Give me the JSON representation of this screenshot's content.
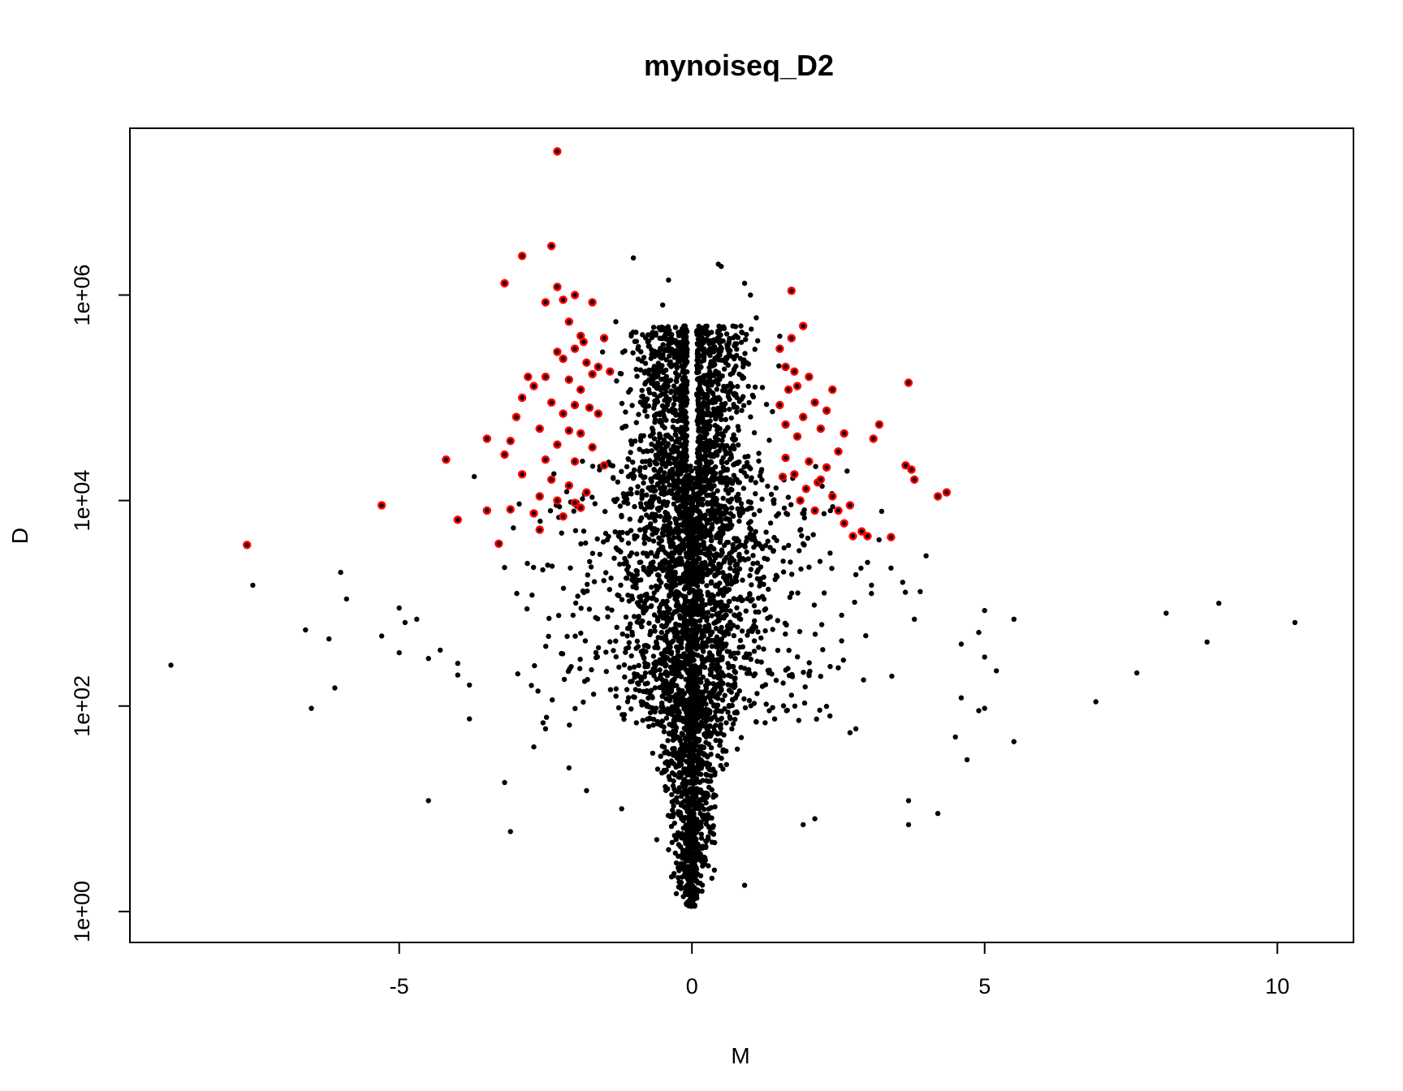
{
  "chart_data": {
    "type": "scatter",
    "title": "mynoiseq_D2",
    "xlabel": "M",
    "ylabel": "D",
    "y_scale": "log",
    "xlim": [
      -9.6,
      11.3
    ],
    "ylim": [
      0.5,
      42000000
    ],
    "x_ticks": [
      {
        "value": -5,
        "label": "-5"
      },
      {
        "value": 0,
        "label": "0"
      },
      {
        "value": 5,
        "label": "5"
      },
      {
        "value": 10,
        "label": "10"
      }
    ],
    "y_ticks": [
      {
        "value": 1,
        "label": "1e+00"
      },
      {
        "value": 100,
        "label": "1e+02"
      },
      {
        "value": 10000,
        "label": "1e+04"
      },
      {
        "value": 1000000,
        "label": "1e+06"
      }
    ],
    "grid": false,
    "colors": {
      "base": "#000000",
      "highlight": "#ff0000"
    },
    "series": [
      {
        "color": "#000000",
        "points": [
          [
            -8.9,
            250
          ],
          [
            -7.5,
            1500
          ],
          [
            -6.0,
            2000
          ],
          [
            -5.9,
            1100
          ],
          [
            -6.6,
            550
          ],
          [
            -6.2,
            450
          ],
          [
            -6.1,
            150
          ],
          [
            -6.5,
            95
          ],
          [
            -5.0,
            900
          ],
          [
            -4.9,
            650
          ],
          [
            -4.7,
            700
          ],
          [
            -5.3,
            480
          ],
          [
            -5.0,
            330
          ],
          [
            -4.5,
            290
          ],
          [
            -4.3,
            350
          ],
          [
            -4.0,
            260
          ],
          [
            -4.0,
            200
          ],
          [
            -3.8,
            160
          ],
          [
            -3.8,
            75
          ],
          [
            -4.5,
            12
          ],
          [
            -3.2,
            18
          ],
          [
            -3.1,
            6
          ],
          [
            -2.7,
            40
          ],
          [
            -2.5,
            60
          ],
          [
            -2.1,
            25
          ],
          [
            -1.8,
            15
          ],
          [
            -1.2,
            10
          ],
          [
            -0.6,
            5
          ],
          [
            -0.4,
            4
          ],
          [
            0.9,
            1.8
          ],
          [
            1.9,
            7
          ],
          [
            2.1,
            8
          ],
          [
            2.7,
            55
          ],
          [
            2.8,
            60
          ],
          [
            3.7,
            12
          ],
          [
            3.7,
            7
          ],
          [
            4.2,
            9
          ],
          [
            4.7,
            30
          ],
          [
            4.5,
            50
          ],
          [
            4.9,
            90
          ],
          [
            5.0,
            95
          ],
          [
            5.5,
            45
          ],
          [
            5.2,
            220
          ],
          [
            5.0,
            300
          ],
          [
            4.6,
            120
          ],
          [
            4.6,
            400
          ],
          [
            4.9,
            520
          ],
          [
            5.0,
            850
          ],
          [
            5.5,
            700
          ],
          [
            6.9,
            110
          ],
          [
            7.6,
            210
          ],
          [
            8.1,
            800
          ],
          [
            8.8,
            420
          ],
          [
            9.0,
            1000
          ],
          [
            10.3,
            650
          ],
          [
            3.8,
            700
          ],
          [
            3.9,
            1300
          ],
          [
            4.0,
            2900
          ],
          [
            3.6,
            1600
          ],
          [
            3.4,
            2200
          ],
          [
            3.0,
            2500
          ],
          [
            2.8,
            1900
          ],
          [
            -1.0,
            2300000
          ],
          [
            -0.4,
            1400000
          ],
          [
            -0.5,
            800000
          ],
          [
            0.45,
            2000000
          ],
          [
            0.5,
            1900000
          ],
          [
            0.9,
            1300000
          ],
          [
            1.0,
            1000000
          ],
          [
            0.7,
            500000
          ],
          [
            -1.3,
            550000
          ],
          [
            1.1,
            600000
          ]
        ]
      },
      {
        "color": "#ff0000",
        "points": [
          [
            -2.3,
            25000000
          ],
          [
            -2.4,
            3000000
          ],
          [
            -2.9,
            2400000
          ],
          [
            -3.2,
            1300000
          ],
          [
            -2.3,
            1200000
          ],
          [
            -2.0,
            1000000
          ],
          [
            -2.2,
            900000
          ],
          [
            -2.5,
            850000
          ],
          [
            -1.7,
            850000
          ],
          [
            -2.1,
            550000
          ],
          [
            -1.9,
            400000
          ],
          [
            -1.85,
            350000
          ],
          [
            -1.5,
            380000
          ],
          [
            -2.0,
            300000
          ],
          [
            -2.3,
            280000
          ],
          [
            -2.2,
            240000
          ],
          [
            -1.8,
            220000
          ],
          [
            -1.6,
            200000
          ],
          [
            -1.4,
            180000
          ],
          [
            -1.7,
            170000
          ],
          [
            -2.5,
            160000
          ],
          [
            -2.8,
            160000
          ],
          [
            -2.1,
            150000
          ],
          [
            -1.9,
            120000
          ],
          [
            -2.7,
            130000
          ],
          [
            -2.9,
            100000
          ],
          [
            -2.4,
            90000
          ],
          [
            -2.0,
            85000
          ],
          [
            -1.75,
            80000
          ],
          [
            -2.2,
            70000
          ],
          [
            -1.6,
            70000
          ],
          [
            -3.0,
            65000
          ],
          [
            -2.6,
            50000
          ],
          [
            -2.1,
            48000
          ],
          [
            -1.9,
            45000
          ],
          [
            -3.5,
            40000
          ],
          [
            -3.1,
            38000
          ],
          [
            -2.3,
            35000
          ],
          [
            -1.7,
            33000
          ],
          [
            -3.2,
            28000
          ],
          [
            -2.5,
            25000
          ],
          [
            -2.0,
            24000
          ],
          [
            -1.5,
            22000
          ],
          [
            -4.2,
            25000
          ],
          [
            -2.9,
            18000
          ],
          [
            -2.4,
            16000
          ],
          [
            -2.1,
            14000
          ],
          [
            -1.8,
            12000
          ],
          [
            -2.6,
            11000
          ],
          [
            -2.3,
            10000
          ],
          [
            -2.0,
            9500
          ],
          [
            -1.9,
            8500
          ],
          [
            -5.3,
            9000
          ],
          [
            -3.5,
            8000
          ],
          [
            -3.1,
            8200
          ],
          [
            -2.7,
            7500
          ],
          [
            -2.2,
            7000
          ],
          [
            -4.0,
            6500
          ],
          [
            -3.3,
            3800
          ],
          [
            -2.6,
            5200
          ],
          [
            -7.6,
            3700
          ],
          [
            1.7,
            1100000
          ],
          [
            1.9,
            500000
          ],
          [
            1.7,
            380000
          ],
          [
            1.5,
            300000
          ],
          [
            1.6,
            200000
          ],
          [
            1.75,
            180000
          ],
          [
            2.0,
            160000
          ],
          [
            1.8,
            130000
          ],
          [
            2.4,
            120000
          ],
          [
            1.65,
            120000
          ],
          [
            2.1,
            90000
          ],
          [
            1.5,
            85000
          ],
          [
            2.3,
            75000
          ],
          [
            1.9,
            65000
          ],
          [
            1.6,
            55000
          ],
          [
            2.2,
            50000
          ],
          [
            2.6,
            45000
          ],
          [
            1.8,
            42000
          ],
          [
            2.5,
            30000
          ],
          [
            1.6,
            26000
          ],
          [
            2.0,
            24000
          ],
          [
            2.3,
            21000
          ],
          [
            1.75,
            18000
          ],
          [
            2.15,
            15000
          ],
          [
            1.95,
            13000
          ],
          [
            2.4,
            11000
          ],
          [
            1.85,
            10000
          ],
          [
            2.7,
            9000
          ],
          [
            2.1,
            8000
          ],
          [
            2.6,
            6000
          ],
          [
            2.9,
            5000
          ],
          [
            3.2,
            55000
          ],
          [
            3.1,
            40000
          ],
          [
            3.0,
            4500
          ],
          [
            3.4,
            4400
          ],
          [
            3.7,
            140000
          ],
          [
            3.65,
            22000
          ],
          [
            3.75,
            20000
          ],
          [
            3.8,
            16000
          ],
          [
            4.2,
            11000
          ],
          [
            4.35,
            12000
          ],
          [
            2.75,
            4500
          ],
          [
            2.5,
            8000
          ],
          [
            1.55,
            17000
          ],
          [
            2.2,
            16000
          ]
        ]
      }
    ]
  }
}
